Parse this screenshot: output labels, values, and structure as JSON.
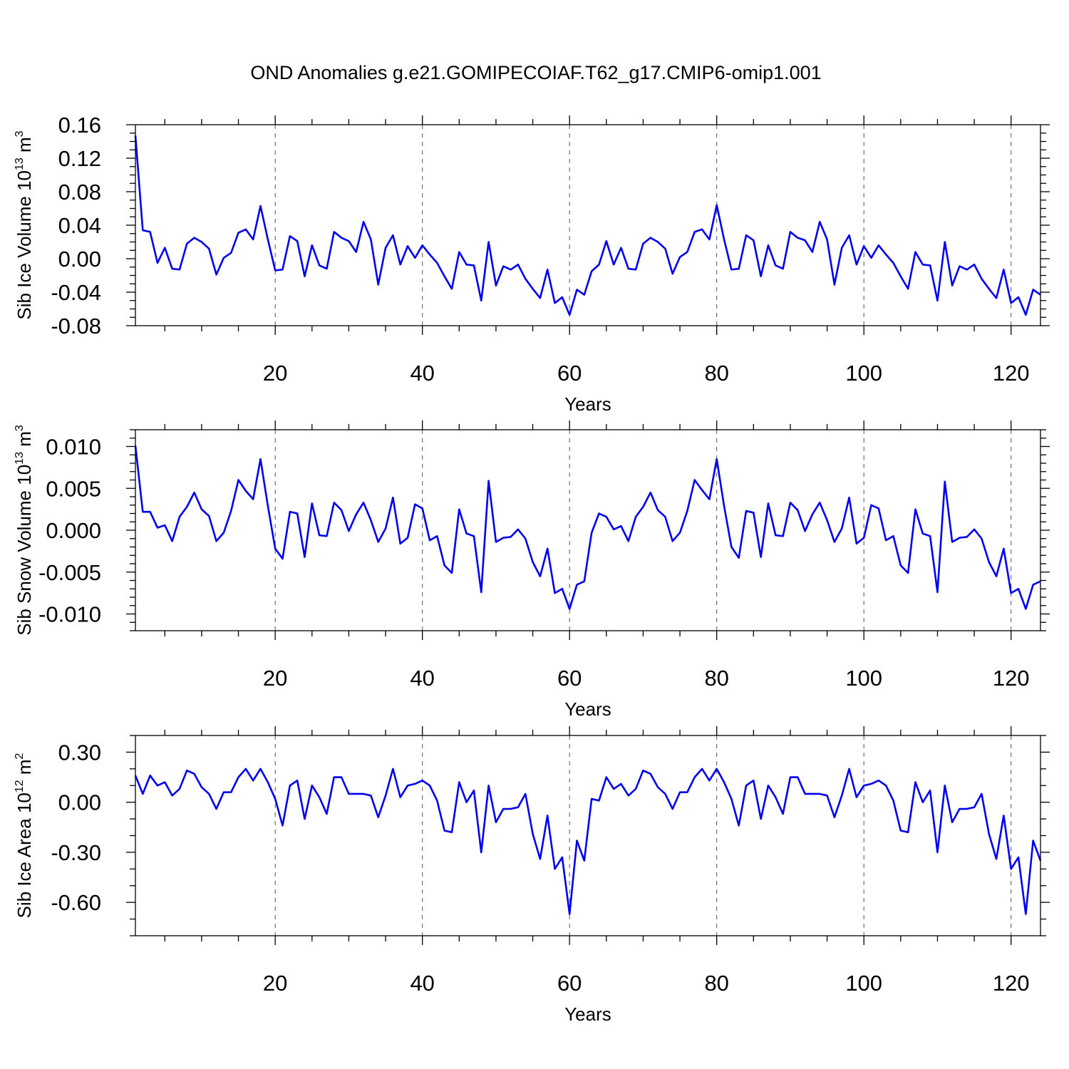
{
  "title": "OND Anomalies g.e21.GOMIPECOIAF.T62_g17.CMIP6-omip1.001",
  "line_color": "#0000ee",
  "chart_data": [
    {
      "type": "line",
      "ylabel": "Sib Ice Volume 10",
      "ylabel_exp": "13",
      "ylabel_unit": " m",
      "ylabel_unit_exp": "3",
      "xlabel": "Years",
      "xlim": [
        1,
        124
      ],
      "ylim": [
        -0.08,
        0.16
      ],
      "x_ticks": [
        20,
        40,
        60,
        80,
        100,
        120
      ],
      "x_tick_labels": [
        "20",
        "40",
        "60",
        "80",
        "100",
        "120"
      ],
      "y_ticks": [
        -0.08,
        -0.04,
        0.0,
        0.04,
        0.08,
        0.12,
        0.16
      ],
      "y_tick_labels": [
        "-0.08",
        "-0.04",
        "0.00",
        "0.04",
        "0.08",
        "0.12",
        "0.16"
      ],
      "y_minor_step": 0.01,
      "vertical_grid": "dashed at major x ticks",
      "x_start": 1,
      "x_step": 1,
      "values": [
        0.147,
        0.034,
        0.032,
        -0.005,
        0.013,
        -0.012,
        -0.013,
        0.018,
        0.025,
        0.02,
        0.012,
        -0.019,
        0.001,
        0.007,
        0.031,
        0.035,
        0.023,
        0.063,
        0.023,
        -0.014,
        -0.013,
        0.027,
        0.021,
        -0.021,
        0.016,
        -0.008,
        -0.012,
        0.032,
        0.025,
        0.021,
        0.008,
        0.044,
        0.023,
        -0.031,
        0.013,
        0.028,
        -0.007,
        0.015,
        0.001,
        0.016,
        0.005,
        -0.005,
        -0.021,
        -0.036,
        0.008,
        -0.007,
        -0.008,
        -0.05,
        0.02,
        -0.032,
        -0.009,
        -0.013,
        -0.007,
        -0.024,
        -0.036,
        -0.047,
        -0.013,
        -0.053,
        -0.046,
        -0.067,
        -0.037,
        -0.043,
        -0.015,
        -0.007,
        0.021,
        -0.007,
        0.013,
        -0.012,
        -0.013,
        0.018,
        0.025,
        0.02,
        0.012,
        -0.018,
        0.002,
        0.008,
        0.032,
        0.035,
        0.023,
        0.064,
        0.023,
        -0.013,
        -0.012,
        0.028,
        0.022,
        -0.021,
        0.016,
        -0.008,
        -0.012,
        0.032,
        0.025,
        0.022,
        0.008,
        0.044,
        0.023,
        -0.031,
        0.013,
        0.028,
        -0.007,
        0.015,
        0.001,
        0.016,
        0.005,
        -0.005,
        -0.021,
        -0.036,
        0.008,
        -0.007,
        -0.008,
        -0.05,
        0.02,
        -0.032,
        -0.009,
        -0.013,
        -0.007,
        -0.024,
        -0.036,
        -0.047,
        -0.013,
        -0.053,
        -0.046,
        -0.067,
        -0.037,
        -0.043
      ]
    },
    {
      "type": "line",
      "ylabel": "Sib Snow Volume 10",
      "ylabel_exp": "13",
      "ylabel_unit": " m",
      "ylabel_unit_exp": "3",
      "xlabel": "Years",
      "xlim": [
        1,
        124
      ],
      "ylim": [
        -0.012,
        0.012
      ],
      "x_ticks": [
        20,
        40,
        60,
        80,
        100,
        120
      ],
      "x_tick_labels": [
        "20",
        "40",
        "60",
        "80",
        "100",
        "120"
      ],
      "y_ticks": [
        -0.01,
        -0.005,
        0.0,
        0.005,
        0.01
      ],
      "y_tick_labels": [
        "-0.010",
        "-0.005",
        "0.000",
        "0.005",
        "0.010"
      ],
      "y_minor_step": 0.001,
      "vertical_grid": "dashed at major x ticks",
      "x_start": 1,
      "x_step": 1,
      "values": [
        0.0101,
        0.0022,
        0.0022,
        0.0003,
        0.0006,
        -0.0013,
        0.0016,
        0.0028,
        0.0045,
        0.0025,
        0.0017,
        -0.0013,
        -0.0003,
        0.0023,
        0.006,
        0.0047,
        0.0037,
        0.0085,
        0.0029,
        -0.0022,
        -0.0034,
        0.0022,
        0.002,
        -0.0032,
        0.0032,
        -0.0006,
        -0.0007,
        0.0033,
        0.0024,
        -0.0001,
        0.0019,
        0.0033,
        0.0012,
        -0.0014,
        0.0002,
        0.0039,
        -0.0016,
        -0.0009,
        0.0031,
        0.0026,
        -0.0012,
        -0.0007,
        -0.0042,
        -0.0051,
        0.0025,
        -0.0004,
        -0.0007,
        -0.0074,
        0.0059,
        -0.0014,
        -0.0009,
        -0.0008,
        0.0001,
        -0.001,
        -0.0038,
        -0.0055,
        -0.0022,
        -0.0075,
        -0.007,
        -0.0094,
        -0.0065,
        -0.0061,
        -0.0003,
        0.002,
        0.0016,
        0.0001,
        0.0005,
        -0.0013,
        0.0016,
        0.0028,
        0.0045,
        0.0024,
        0.0016,
        -0.0013,
        -0.0003,
        0.0023,
        0.006,
        0.0048,
        0.0037,
        0.0085,
        0.0029,
        -0.002,
        -0.0033,
        0.0023,
        0.0021,
        -0.0032,
        0.0032,
        -0.0006,
        -0.0007,
        0.0033,
        0.0024,
        -0.0001,
        0.0019,
        0.0033,
        0.0012,
        -0.0014,
        0.0002,
        0.0039,
        -0.0016,
        -0.0009,
        0.003,
        0.0026,
        -0.0012,
        -0.0007,
        -0.0042,
        -0.0051,
        0.0025,
        -0.0004,
        -0.0007,
        -0.0074,
        0.0058,
        -0.0014,
        -0.0009,
        -0.0008,
        0.0001,
        -0.001,
        -0.0038,
        -0.0055,
        -0.0022,
        -0.0075,
        -0.007,
        -0.0094,
        -0.0065,
        -0.0061
      ]
    },
    {
      "type": "line",
      "ylabel": "Sib Ice Area 10",
      "ylabel_exp": "12",
      "ylabel_unit": " m",
      "ylabel_unit_exp": "2",
      "xlabel": "Years",
      "xlim": [
        1,
        124
      ],
      "ylim": [
        -0.8,
        0.4
      ],
      "x_ticks": [
        20,
        40,
        60,
        80,
        100,
        120
      ],
      "x_tick_labels": [
        "20",
        "40",
        "60",
        "80",
        "100",
        "120"
      ],
      "y_ticks": [
        -0.6,
        -0.3,
        0.0,
        0.3
      ],
      "y_tick_labels": [
        "-0.60",
        "-0.30",
        "0.00",
        "0.30"
      ],
      "y_minor_step": 0.1,
      "vertical_grid": "dashed at major x ticks",
      "x_start": 1,
      "x_step": 1,
      "values": [
        0.16,
        0.05,
        0.16,
        0.1,
        0.12,
        0.04,
        0.08,
        0.19,
        0.17,
        0.09,
        0.05,
        -0.04,
        0.06,
        0.06,
        0.15,
        0.2,
        0.13,
        0.2,
        0.12,
        0.02,
        -0.14,
        0.1,
        0.13,
        -0.1,
        0.1,
        0.03,
        -0.07,
        0.15,
        0.15,
        0.05,
        0.05,
        0.05,
        0.04,
        -0.09,
        0.04,
        0.2,
        0.03,
        0.1,
        0.11,
        0.13,
        0.1,
        0.01,
        -0.17,
        -0.18,
        0.12,
        0.0,
        0.07,
        -0.3,
        0.1,
        -0.12,
        -0.04,
        -0.04,
        -0.03,
        0.05,
        -0.19,
        -0.34,
        -0.08,
        -0.4,
        -0.33,
        -0.67,
        -0.23,
        -0.35,
        0.02,
        0.01,
        0.15,
        0.08,
        0.11,
        0.04,
        0.08,
        0.19,
        0.17,
        0.09,
        0.05,
        -0.04,
        0.06,
        0.06,
        0.15,
        0.2,
        0.13,
        0.2,
        0.12,
        0.02,
        -0.14,
        0.1,
        0.13,
        -0.1,
        0.1,
        0.03,
        -0.07,
        0.15,
        0.15,
        0.05,
        0.05,
        0.05,
        0.04,
        -0.09,
        0.04,
        0.2,
        0.03,
        0.1,
        0.11,
        0.13,
        0.1,
        0.01,
        -0.17,
        -0.18,
        0.12,
        0.0,
        0.07,
        -0.3,
        0.1,
        -0.12,
        -0.04,
        -0.04,
        -0.03,
        0.05,
        -0.19,
        -0.34,
        -0.08,
        -0.4,
        -0.33,
        -0.67,
        -0.23,
        -0.35
      ]
    }
  ]
}
